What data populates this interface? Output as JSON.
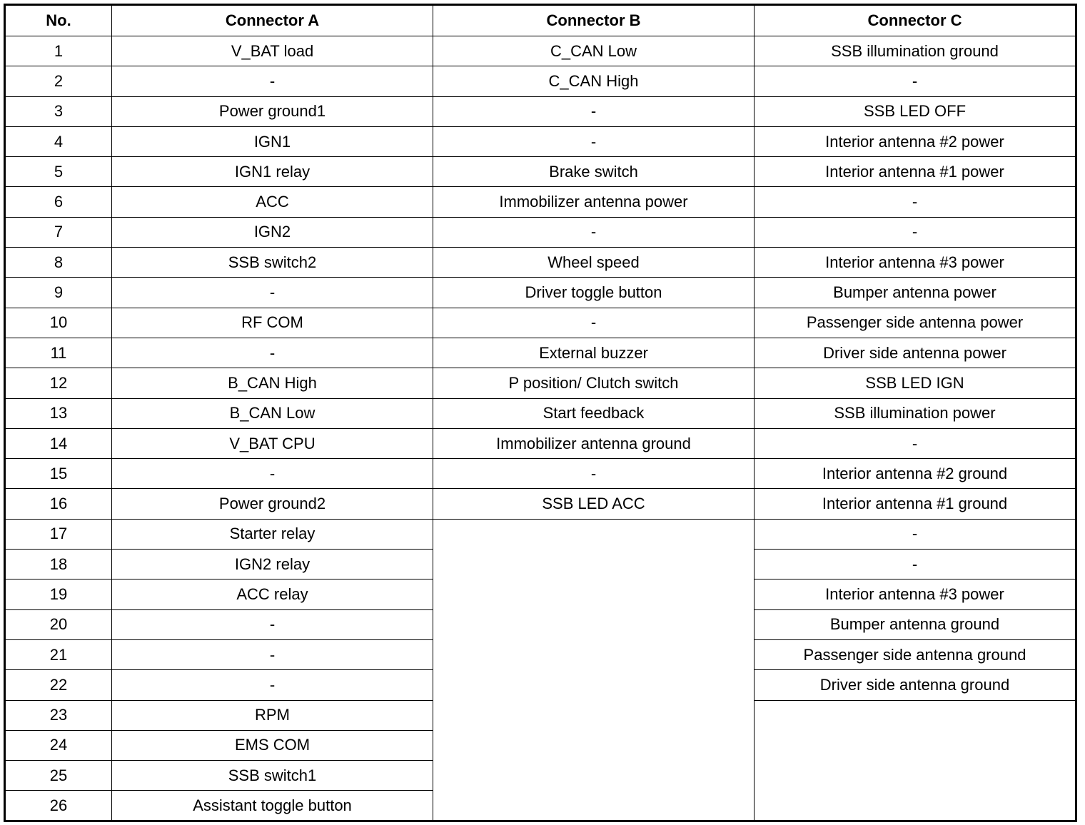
{
  "headers": [
    "No.",
    "Connector A",
    "Connector B",
    "Connector C"
  ],
  "numbers": [
    "1",
    "2",
    "3",
    "4",
    "5",
    "6",
    "7",
    "8",
    "9",
    "10",
    "11",
    "12",
    "13",
    "14",
    "15",
    "16",
    "17",
    "18",
    "19",
    "20",
    "21",
    "22",
    "23",
    "24",
    "25",
    "26"
  ],
  "connector_a": [
    "V_BAT load",
    "-",
    "Power ground1",
    "IGN1",
    "IGN1 relay",
    "ACC",
    "IGN2",
    "SSB switch2",
    "-",
    "RF COM",
    "-",
    "B_CAN High",
    "B_CAN Low",
    "V_BAT CPU",
    "-",
    "Power ground2",
    "Starter relay",
    "IGN2 relay",
    "ACC relay",
    "-",
    "-",
    "-",
    "RPM",
    "EMS COM",
    "SSB switch1",
    "Assistant toggle button"
  ],
  "connector_b": [
    "C_CAN Low",
    "C_CAN High",
    "-",
    "-",
    "Brake switch",
    "Immobilizer antenna power",
    "-",
    "Wheel speed",
    "Driver toggle button",
    "-",
    "External buzzer",
    "P position/ Clutch switch",
    "Start feedback",
    "Immobilizer antenna ground",
    "-",
    "SSB LED ACC"
  ],
  "connector_c": [
    "SSB illumination ground",
    "-",
    "SSB LED OFF",
    "Interior antenna #2 power",
    "Interior antenna #1 power",
    "-",
    "-",
    "Interior antenna #3 power",
    "Bumper antenna power",
    "Passenger side antenna power",
    "Driver side antenna power",
    "SSB LED IGN",
    "SSB illumination power",
    "-",
    "Interior antenna #2 ground",
    "Interior antenna #1 ground",
    "-",
    "-",
    "Interior antenna #3 power",
    "Bumper antenna ground",
    "Passenger side antenna ground",
    "Driver side antenna ground"
  ]
}
